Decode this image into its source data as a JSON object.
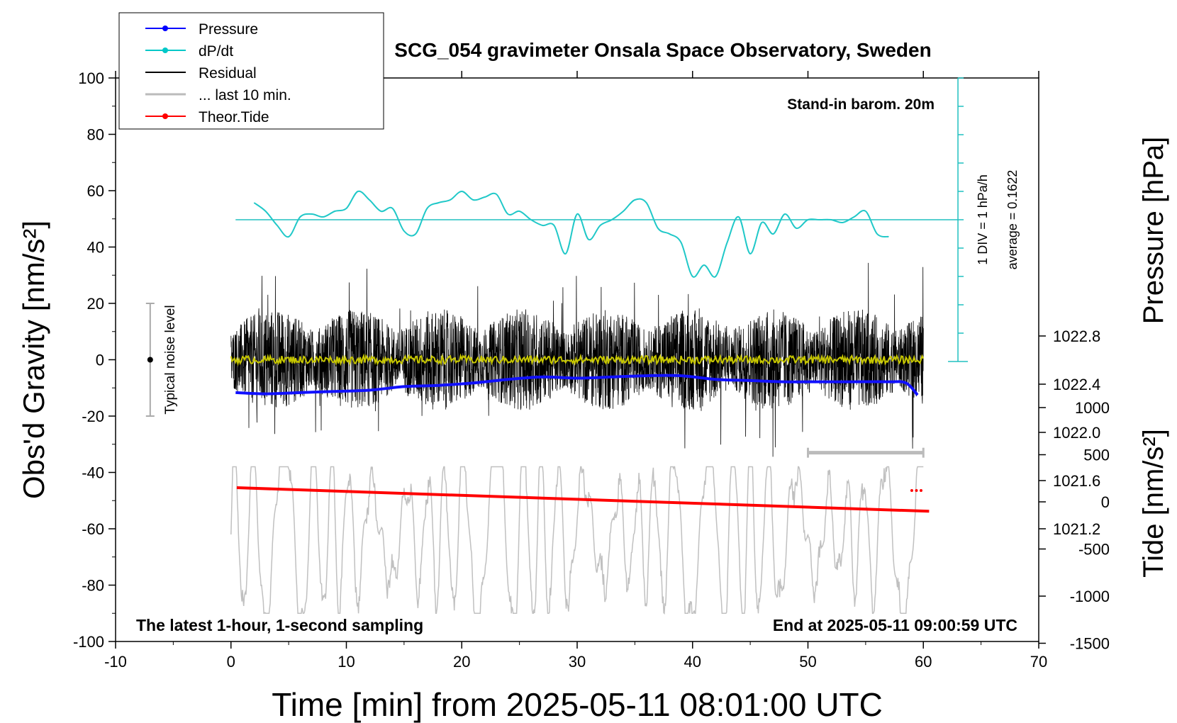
{
  "chart_data": {
    "type": "line",
    "title": "SCG_054 gravimeter Onsala Space Observatory, Sweden",
    "xlabel": "Time [min] from 2025-05-11 08:01:00 UTC",
    "ylabel_left": "Obs'd Gravity [nm/s²]",
    "ylabel_right_top": "Pressure [hPa]",
    "ylabel_right_bottom": "Tide [nm/s²]",
    "xlim": [
      -10,
      70
    ],
    "ylim_left": [
      -100,
      100
    ],
    "x_ticks": [
      -10,
      0,
      10,
      20,
      30,
      40,
      50,
      60,
      70
    ],
    "y_ticks_left": [
      -100,
      -80,
      -60,
      -40,
      -20,
      0,
      20,
      40,
      60,
      80,
      100
    ],
    "pressure_ticks": [
      "1021.2",
      "1021.6",
      "1022.0",
      "1022.4",
      "1022.8"
    ],
    "tide_ticks": [
      "1000",
      "500",
      "0",
      "-500",
      "-1000",
      "-1500"
    ],
    "grid": false,
    "legend_position": "top-left",
    "legend": [
      {
        "label": "Pressure",
        "color": "#0000ff",
        "marker": "dot"
      },
      {
        "label": "dP/dt",
        "color": "#00c8c8",
        "marker": "dot"
      },
      {
        "label": "Residual",
        "color": "#000000",
        "marker": "none"
      },
      {
        "label": "... last 10 min.",
        "color": "#bbbbbb",
        "marker": "none"
      },
      {
        "label": "Theor.Tide",
        "color": "#ff0000",
        "marker": "dot"
      }
    ],
    "annotations": {
      "barometer": "Stand-in barom. 20m",
      "div_label": "1 DIV = 1 hPa/h",
      "average_label": "average = 0.1622",
      "noise_label": "Typical noise level",
      "bottom_left": "The latest 1-hour, 1-second sampling",
      "bottom_right": "End at 2025-05-11 09:00:59 UTC"
    },
    "pressure_series": {
      "name": "Pressure",
      "unit": "hPa",
      "x": [
        0.4,
        3,
        6,
        9,
        12,
        15,
        18,
        21,
        24,
        27,
        30,
        33,
        36,
        39,
        42,
        45,
        48,
        51,
        54,
        57,
        58.5,
        59.5
      ],
      "y": [
        1022.33,
        1022.32,
        1022.33,
        1022.34,
        1022.35,
        1022.38,
        1022.39,
        1022.41,
        1022.44,
        1022.46,
        1022.45,
        1022.46,
        1022.47,
        1022.47,
        1022.44,
        1022.43,
        1022.42,
        1022.42,
        1022.42,
        1022.42,
        1022.41,
        1022.31
      ]
    },
    "dpdt_series": {
      "name": "dP/dt",
      "unit": "hPa/h",
      "x": [
        2.0,
        3,
        4,
        5,
        6,
        7,
        8,
        9,
        10,
        11,
        12,
        13,
        14,
        15,
        16,
        17,
        18,
        19,
        20,
        21,
        22,
        23,
        24,
        25,
        26,
        27,
        28,
        29,
        30,
        31,
        32,
        33,
        34,
        35,
        36,
        37,
        38,
        39,
        40,
        41,
        42,
        43,
        44,
        45,
        46,
        47,
        48,
        49,
        50,
        51,
        52,
        53,
        54,
        55,
        56,
        57
      ],
      "y": [
        0.6,
        0.3,
        -0.2,
        -0.6,
        0.1,
        0.2,
        0.1,
        0.3,
        0.4,
        1.0,
        0.7,
        0.3,
        0.4,
        -0.4,
        -0.5,
        0.4,
        0.6,
        0.7,
        1.0,
        0.7,
        0.8,
        0.9,
        0.2,
        0.3,
        0.0,
        -0.2,
        -0.2,
        -1.2,
        0.2,
        -0.7,
        -0.2,
        0.0,
        0.3,
        0.7,
        0.6,
        -0.3,
        -0.5,
        -0.8,
        -2.0,
        -1.6,
        -2.0,
        -0.8,
        0.1,
        -1.2,
        -0.1,
        -0.5,
        0.2,
        -0.3,
        0.0,
        0.0,
        0.0,
        -0.1,
        0.1,
        0.3,
        -0.5,
        -0.6
      ]
    },
    "residual_series": {
      "name": "Residual",
      "unit": "nm/s²",
      "x_range": [
        0,
        60
      ],
      "typical_range": [
        -30,
        40
      ],
      "running_mean": 0
    },
    "tide_series": {
      "name": "Theor.Tide",
      "unit": "nm/s²",
      "x": [
        0.5,
        60.5
      ],
      "y": [
        150,
        -100
      ]
    },
    "last_10_min_marker": {
      "x": [
        50,
        60
      ],
      "y": -33
    },
    "noise_bar": {
      "x": -7,
      "y_range": [
        -20,
        20
      ],
      "center": 0
    }
  }
}
